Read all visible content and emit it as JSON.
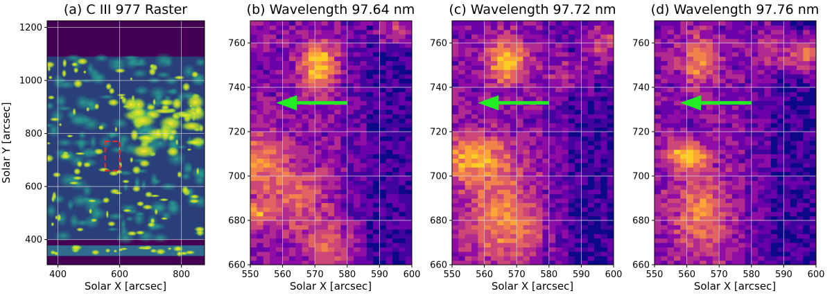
{
  "chart_data": [
    {
      "type": "heatmap",
      "panel": "a",
      "title": "(a) C III 977 Raster",
      "xlabel": "Solar X [arcsec]",
      "ylabel": "Solar Y [arcsec]",
      "xlim": [
        365,
        875
      ],
      "ylim": [
        305,
        1225
      ],
      "xticks": [
        400,
        600,
        800
      ],
      "yticks": [
        400,
        600,
        800,
        1000,
        1200
      ],
      "colormap": "viridis",
      "box": {
        "x": [
          553,
          600
        ],
        "y": [
          660,
          770
        ],
        "color": "#e8262a"
      }
    },
    {
      "type": "heatmap",
      "panel": "b",
      "title": "(b) Wavelength 97.64 nm",
      "xlabel": "Solar X [arcsec]",
      "ylabel": "",
      "xlim": [
        550,
        600
      ],
      "ylim": [
        660,
        770
      ],
      "xticks": [
        550,
        560,
        570,
        580,
        590,
        600
      ],
      "yticks": [
        660,
        680,
        700,
        720,
        740,
        760
      ],
      "colormap": "plasma",
      "arrow": {
        "from": [
          580,
          733
        ],
        "to": [
          558,
          733
        ],
        "color": "#22ee22"
      }
    },
    {
      "type": "heatmap",
      "panel": "c",
      "title": "(c) Wavelength 97.72 nm",
      "xlabel": "Solar X [arcsec]",
      "ylabel": "",
      "xlim": [
        550,
        600
      ],
      "ylim": [
        660,
        770
      ],
      "xticks": [
        550,
        560,
        570,
        580,
        590,
        600
      ],
      "yticks": [
        660,
        680,
        700,
        720,
        740,
        760
      ],
      "colormap": "plasma",
      "arrow": {
        "from": [
          580,
          733
        ],
        "to": [
          558,
          733
        ],
        "color": "#22ee22"
      }
    },
    {
      "type": "heatmap",
      "panel": "d",
      "title": "(d) Wavelength 97.76 nm",
      "xlabel": "Solar X [arcsec]",
      "ylabel": "",
      "xlim": [
        550,
        600
      ],
      "ylim": [
        660,
        770
      ],
      "xticks": [
        550,
        560,
        570,
        580,
        590,
        600
      ],
      "yticks": [
        660,
        680,
        700,
        720,
        740,
        760
      ],
      "colormap": "plasma",
      "arrow": {
        "from": [
          580,
          733
        ],
        "to": [
          558,
          733
        ],
        "color": "#22ee22"
      }
    }
  ]
}
